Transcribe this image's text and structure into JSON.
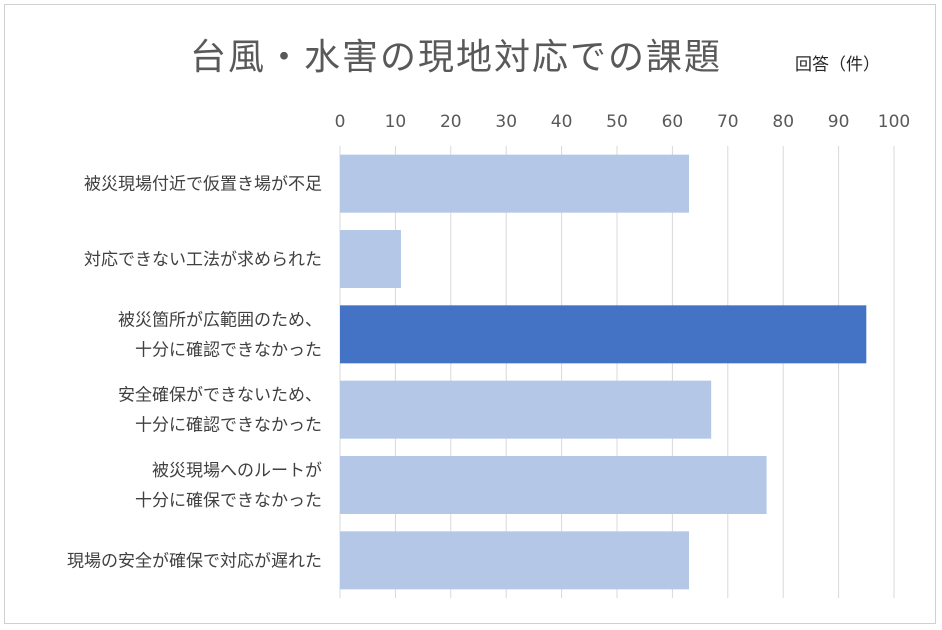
{
  "chart_data": {
    "type": "bar",
    "orientation": "horizontal",
    "title": "台風・水害の現地対応での課題",
    "unit_label": "回答（件）",
    "xlim": [
      0,
      100
    ],
    "ticks": [
      "0",
      "10",
      "20",
      "30",
      "40",
      "50",
      "60",
      "70",
      "80",
      "90",
      "100"
    ],
    "tick_values": [
      0,
      10,
      20,
      30,
      40,
      50,
      60,
      70,
      80,
      90,
      100
    ],
    "grid": true,
    "categories": [
      [
        "被災現場付近で仮置き場が不足"
      ],
      [
        "対応できない工法が求められた"
      ],
      [
        "被災箇所が広範囲のため、",
        "十分に確認できなかった"
      ],
      [
        "安全確保ができないため、",
        "十分に確認できなかった"
      ],
      [
        "被災現場へのルートが",
        "十分に確保できなかった"
      ],
      [
        "現場の安全が確保で対応が遅れた"
      ]
    ],
    "values": [
      63,
      11,
      95,
      67,
      77,
      63
    ],
    "colors": [
      "#b4c7e7",
      "#b4c7e7",
      "#4472c4",
      "#b4c7e7",
      "#b4c7e7",
      "#b4c7e7"
    ]
  }
}
